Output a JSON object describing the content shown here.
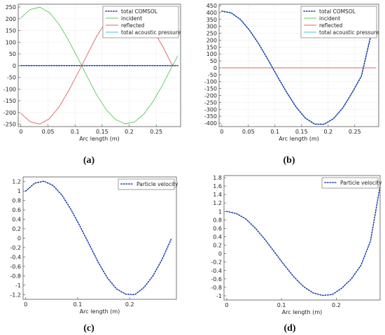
{
  "chart_data": [
    {
      "type": "line",
      "panel": "(a)",
      "xlabel": "Arc length (m)",
      "ylabel": "",
      "xlim": [
        -0.005,
        0.295
      ],
      "ylim": [
        -260,
        262
      ],
      "xticks": [
        0,
        0.05,
        0.1,
        0.15,
        0.2,
        0.25
      ],
      "xtick_labels": [
        "0",
        "0.05",
        "0.1",
        "0.15",
        "0.2",
        "0.25"
      ],
      "yticks": [
        -250,
        -200,
        -150,
        -100,
        -50,
        0,
        50,
        100,
        150,
        200,
        250
      ],
      "grid": true,
      "legend_position": "top-right",
      "series": [
        {
          "name": "total COMSOL",
          "style": "dotted",
          "color": "#1f3fb4",
          "x": [
            0,
            0.05,
            0.1,
            0.15,
            0.2,
            0.25,
            0.29
          ],
          "y": [
            0,
            0,
            0,
            0,
            0,
            0,
            0
          ]
        },
        {
          "name": "incident",
          "style": "solid",
          "color": "#5ac85a",
          "x": [
            0,
            0.0175,
            0.035,
            0.0525,
            0.07,
            0.0875,
            0.105,
            0.1225,
            0.14,
            0.1575,
            0.175,
            0.1925,
            0.21,
            0.2275,
            0.245,
            0.2625,
            0.28,
            0.29
          ],
          "y": [
            204,
            240,
            249,
            227,
            178,
            110,
            33,
            -47,
            -125,
            -188,
            -230,
            -248,
            -240,
            -206,
            -150,
            -79,
            0,
            43
          ]
        },
        {
          "name": "reflected",
          "style": "solid",
          "color": "#e06060",
          "x": [
            0,
            0.0175,
            0.035,
            0.0525,
            0.07,
            0.0875,
            0.105,
            0.1225,
            0.14,
            0.1575,
            0.175,
            0.1925,
            0.21,
            0.2275,
            0.245,
            0.2625,
            0.28
          ],
          "y": [
            -204,
            -240,
            -249,
            -227,
            -178,
            -110,
            -33,
            47,
            125,
            188,
            230,
            248,
            240,
            206,
            150,
            79,
            0
          ]
        },
        {
          "name": "total acoustic pressure",
          "style": "solid",
          "color": "#3fc6d6",
          "x": [
            0,
            0.05,
            0.1,
            0.15,
            0.2,
            0.25,
            0.29
          ],
          "y": [
            0,
            0,
            0,
            0,
            0,
            0,
            0
          ]
        }
      ]
    },
    {
      "type": "line",
      "panel": "(b)",
      "xlabel": "Arc length (m)",
      "ylabel": "",
      "xlim": [
        -0.005,
        0.295
      ],
      "ylim": [
        -425,
        460
      ],
      "xticks": [
        0,
        0.05,
        0.1,
        0.15,
        0.2,
        0.25
      ],
      "xtick_labels": [
        "0",
        "0.05",
        "0.1",
        "0.15",
        "0.2",
        "0.25"
      ],
      "yticks": [
        -400,
        -350,
        -300,
        -250,
        -200,
        -150,
        -100,
        -50,
        0,
        50,
        100,
        150,
        200,
        250,
        300,
        350,
        400,
        450
      ],
      "grid": true,
      "legend_position": "top-right",
      "series": [
        {
          "name": "total COMSOL",
          "style": "dotted",
          "color": "#1f3fb4",
          "x": [
            0,
            0.0175,
            0.035,
            0.0525,
            0.07,
            0.0875,
            0.105,
            0.1225,
            0.14,
            0.1575,
            0.175,
            0.1925,
            0.21,
            0.2275,
            0.245,
            0.2625,
            0.28
          ],
          "y": [
            410,
            398,
            350,
            270,
            170,
            55,
            -65,
            -180,
            -285,
            -365,
            -408,
            -408,
            -368,
            -290,
            -180,
            -60,
            230
          ]
        },
        {
          "name": "incident",
          "style": "solid",
          "color": "#5ac85a",
          "x": [
            0,
            0.05,
            0.1,
            0.15,
            0.2,
            0.25,
            0.29
          ],
          "y": [
            0,
            0,
            0,
            0,
            0,
            0,
            0
          ]
        },
        {
          "name": "reflected",
          "style": "solid",
          "color": "#e06060",
          "x": [
            0,
            0.05,
            0.1,
            0.15,
            0.2,
            0.25,
            0.29
          ],
          "y": [
            0,
            0,
            0,
            0,
            0,
            0,
            0
          ]
        },
        {
          "name": "total acoustic pressure",
          "style": "solid",
          "color": "#3fc6d6",
          "x": [
            0,
            0.0175,
            0.035,
            0.0525,
            0.07,
            0.0875,
            0.105,
            0.1225,
            0.14,
            0.1575,
            0.175,
            0.1925,
            0.21,
            0.2275,
            0.245,
            0.2625,
            0.28
          ],
          "y": [
            410,
            398,
            350,
            270,
            170,
            55,
            -65,
            -180,
            -285,
            -365,
            -408,
            -408,
            -368,
            -290,
            -180,
            -60,
            230
          ]
        }
      ]
    },
    {
      "type": "line",
      "panel": "(c)",
      "xlabel": "Arc length (m)",
      "ylabel": "",
      "xlim": [
        -0.005,
        0.29
      ],
      "ylim": [
        -1.3,
        1.3
      ],
      "xticks": [
        0,
        0.1,
        0.2
      ],
      "xtick_labels": [
        "0",
        "0.1",
        "0.2"
      ],
      "yticks": [
        -1.2,
        -1,
        -0.8,
        -0.6,
        -0.4,
        -0.2,
        0,
        0.2,
        0.4,
        0.6,
        0.8,
        1,
        1.2
      ],
      "grid": false,
      "legend_position": "top-right",
      "series": [
        {
          "name": "Particle velocity",
          "style": "dotted",
          "color": "#1f3fb4",
          "x": [
            0,
            0.0175,
            0.035,
            0.0525,
            0.07,
            0.0875,
            0.105,
            0.1225,
            0.14,
            0.1575,
            0.175,
            0.1925,
            0.21,
            0.2275,
            0.245,
            0.2625,
            0.28
          ],
          "y": [
            1.0,
            1.17,
            1.21,
            1.12,
            0.91,
            0.6,
            0.24,
            -0.14,
            -0.52,
            -0.85,
            -1.08,
            -1.19,
            -1.2,
            -1.05,
            -0.8,
            -0.45,
            -0.02
          ]
        }
      ]
    },
    {
      "type": "line",
      "panel": "(d)",
      "xlabel": "Arc length (m)",
      "ylabel": "",
      "xlim": [
        -0.005,
        0.28
      ],
      "ylim": [
        -1.1,
        1.85
      ],
      "xticks": [
        0,
        0.1,
        0.2
      ],
      "xtick_labels": [
        "0",
        "0.1",
        "0.2"
      ],
      "yticks": [
        -1,
        -0.8,
        -0.6,
        -0.4,
        -0.2,
        0,
        0.2,
        0.4,
        0.6,
        0.8,
        1,
        1.2,
        1.4,
        1.6,
        1.8
      ],
      "grid": false,
      "legend_position": "top-right",
      "series": [
        {
          "name": "Particle velocity",
          "style": "dotted",
          "color": "#1f3fb4",
          "x": [
            0,
            0.0175,
            0.035,
            0.0525,
            0.07,
            0.0875,
            0.105,
            0.1225,
            0.14,
            0.1575,
            0.175,
            0.1925,
            0.21,
            0.2275,
            0.245,
            0.2625,
            0.28
          ],
          "y": [
            1.0,
            0.95,
            0.82,
            0.6,
            0.33,
            0.03,
            -0.27,
            -0.55,
            -0.78,
            -0.93,
            -0.99,
            -0.97,
            -0.82,
            -0.6,
            -0.28,
            0.3,
            1.6
          ]
        }
      ]
    }
  ]
}
